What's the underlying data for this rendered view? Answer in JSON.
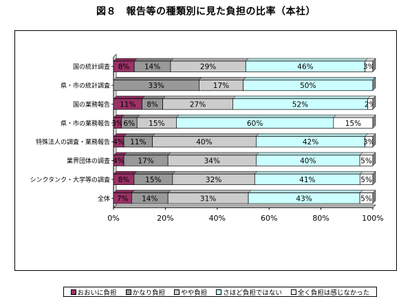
{
  "title": "図８　報告等の種類別に見た負担の比率（本社）",
  "chart_data": {
    "type": "bar",
    "orientation": "horizontal",
    "stacked": "percent",
    "categories": [
      "国の統計調査",
      "県・市の統計調査",
      "国の業務報告",
      "県・市の業務報告",
      "特殊法人の調査・業務報告",
      "業界団体の調査",
      "シンクタンク・大学等の調査",
      "全体"
    ],
    "series": [
      {
        "name": "おおいに負担",
        "color": "#993366",
        "values": [
          8,
          0,
          11,
          3,
          4,
          4,
          8,
          7
        ],
        "labels": [
          "8%",
          "",
          "11%",
          "3%",
          "4%",
          "4%",
          "8%",
          "7%"
        ]
      },
      {
        "name": "かなり負担",
        "color": "#999999",
        "values": [
          14,
          33,
          8,
          6,
          11,
          17,
          15,
          14
        ],
        "labels": [
          "14%",
          "33%",
          "8%",
          "6%",
          "11%",
          "17%",
          "15%",
          "14%"
        ]
      },
      {
        "name": "やや負担",
        "color": "#cccccc",
        "values": [
          29,
          17,
          27,
          15,
          40,
          34,
          32,
          31
        ],
        "labels": [
          "29%",
          "17%",
          "27%",
          "15%",
          "40%",
          "34%",
          "32%",
          "31%"
        ]
      },
      {
        "name": "さほど負担ではない",
        "color": "#ccffff",
        "values": [
          46,
          50,
          52,
          60,
          42,
          40,
          41,
          43
        ],
        "labels": [
          "46%",
          "50%",
          "52%",
          "60%",
          "42%",
          "40%",
          "41%",
          "43%"
        ]
      },
      {
        "name": "全く負担は感じなかった",
        "color": "#ffffff",
        "values": [
          3,
          0,
          2,
          15,
          3,
          5,
          5,
          5
        ],
        "labels": [
          "3%",
          "",
          "2%",
          "15%",
          "3%",
          "5%",
          "5%",
          "5%"
        ]
      }
    ],
    "xticks": [
      "0%",
      "20%",
      "40%",
      "60%",
      "80%",
      "100%"
    ],
    "xlim": [
      0,
      100
    ],
    "grid": false,
    "legend_position": "bottom"
  }
}
